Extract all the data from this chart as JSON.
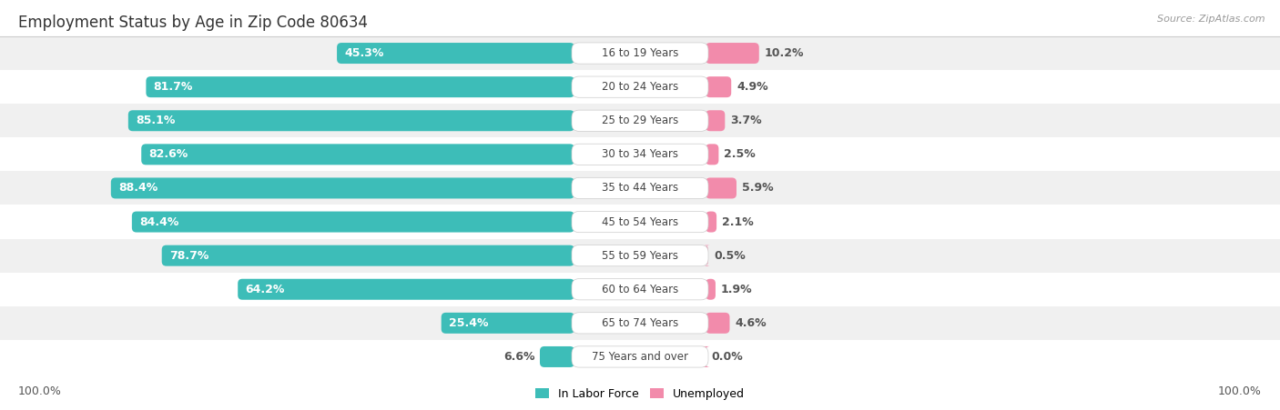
{
  "title": "Employment Status by Age in Zip Code 80634",
  "source": "Source: ZipAtlas.com",
  "categories": [
    "16 to 19 Years",
    "20 to 24 Years",
    "25 to 29 Years",
    "30 to 34 Years",
    "35 to 44 Years",
    "45 to 54 Years",
    "55 to 59 Years",
    "60 to 64 Years",
    "65 to 74 Years",
    "75 Years and over"
  ],
  "labor_force": [
    45.3,
    81.7,
    85.1,
    82.6,
    88.4,
    84.4,
    78.7,
    64.2,
    25.4,
    6.6
  ],
  "unemployed": [
    10.2,
    4.9,
    3.7,
    2.5,
    5.9,
    2.1,
    0.5,
    1.9,
    4.6,
    0.0
  ],
  "labor_color": "#3dbdb8",
  "unemployed_color": "#f28bab",
  "row_bg_odd": "#f0f0f0",
  "row_bg_even": "#ffffff",
  "label_color_white": "#ffffff",
  "label_color_dark": "#555555",
  "axis_label_left": "100.0%",
  "axis_label_right": "100.0%",
  "legend_labor": "In Labor Force",
  "legend_unemployed": "Unemployed",
  "title_fontsize": 12,
  "source_fontsize": 8,
  "bar_label_fontsize": 9,
  "category_fontsize": 8.5,
  "legend_fontsize": 9,
  "axis_fontsize": 9,
  "max_pct": 100.0
}
